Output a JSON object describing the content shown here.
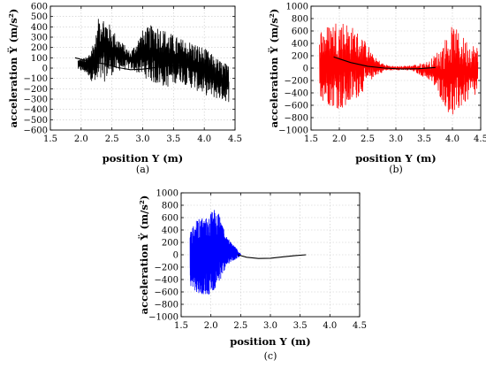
{
  "chart_data": [
    {
      "panel": "a",
      "type": "line",
      "caption": "(a)",
      "xlabel": "position Y (m)",
      "ylabel": "acceleration Ÿ (m/s²)",
      "xlim": [
        1.5,
        4.5
      ],
      "ylim": [
        -600,
        600
      ],
      "xticks": [
        "1.5",
        "2.0",
        "2.5",
        "3.0",
        "3.5",
        "4.0",
        "4.5"
      ],
      "yticks": [
        "600",
        "500",
        "400",
        "300",
        "200",
        "100",
        "0",
        "−100",
        "−200",
        "−300",
        "−400",
        "−500",
        "−600"
      ],
      "grid": true,
      "color": "#000000",
      "series": [
        {
          "style": "noisy",
          "x_range": [
            1.95,
            4.4
          ],
          "envelope_upper": [
            [
              1.95,
              90
            ],
            [
              2.1,
              110
            ],
            [
              2.25,
              350
            ],
            [
              2.3,
              570
            ],
            [
              2.45,
              440
            ],
            [
              2.6,
              300
            ],
            [
              2.8,
              160
            ],
            [
              3.0,
              370
            ],
            [
              3.2,
              440
            ],
            [
              3.4,
              360
            ],
            [
              3.6,
              290
            ],
            [
              3.8,
              260
            ],
            [
              4.0,
              200
            ],
            [
              4.2,
              100
            ],
            [
              4.4,
              30
            ]
          ],
          "envelope_lower": [
            [
              1.95,
              -20
            ],
            [
              2.1,
              -60
            ],
            [
              2.25,
              -200
            ],
            [
              2.3,
              -180
            ],
            [
              2.45,
              -90
            ],
            [
              2.6,
              -30
            ],
            [
              2.8,
              -10
            ],
            [
              3.0,
              -80
            ],
            [
              3.2,
              -160
            ],
            [
              3.4,
              -190
            ],
            [
              3.6,
              -130
            ],
            [
              3.8,
              -200
            ],
            [
              4.0,
              -260
            ],
            [
              4.2,
              -300
            ],
            [
              4.4,
              -330
            ]
          ]
        },
        {
          "style": "smooth",
          "points": [
            [
              1.9,
              100
            ],
            [
              2.2,
              55
            ],
            [
              2.4,
              40
            ],
            [
              2.6,
              5
            ],
            [
              2.8,
              -15
            ],
            [
              3.0,
              -10
            ],
            [
              3.2,
              5
            ],
            [
              3.4,
              20
            ],
            [
              3.6,
              25
            ],
            [
              3.8,
              25
            ],
            [
              4.0,
              20
            ]
          ]
        }
      ]
    },
    {
      "panel": "b",
      "type": "line",
      "caption": "(b)",
      "xlabel": "position Y (m)",
      "ylabel": "acceleration Ÿ (m/s²)",
      "xlim": [
        1.5,
        4.5
      ],
      "ylim": [
        -1000,
        1000
      ],
      "xticks": [
        "1.5",
        "2.0",
        "2.5",
        "3.0",
        "3.5",
        "4.0",
        "4.5"
      ],
      "yticks": [
        "1000",
        "800",
        "600",
        "400",
        "200",
        "0",
        "−200",
        "−400",
        "−600",
        "−800",
        "−1000"
      ],
      "grid": true,
      "color": "#ff0000",
      "series": [
        {
          "style": "noisy",
          "x_range": [
            1.65,
            4.45
          ],
          "envelope_upper": [
            [
              1.65,
              650
            ],
            [
              1.8,
              700
            ],
            [
              1.95,
              800
            ],
            [
              2.1,
              780
            ],
            [
              2.3,
              620
            ],
            [
              2.5,
              400
            ],
            [
              2.6,
              200
            ],
            [
              2.8,
              60
            ],
            [
              3.0,
              30
            ],
            [
              3.3,
              50
            ],
            [
              3.6,
              120
            ],
            [
              3.8,
              350
            ],
            [
              4.0,
              700
            ],
            [
              4.2,
              500
            ],
            [
              4.45,
              350
            ]
          ],
          "envelope_lower": [
            [
              1.65,
              -500
            ],
            [
              1.8,
              -600
            ],
            [
              1.95,
              -650
            ],
            [
              2.1,
              -700
            ],
            [
              2.3,
              -500
            ],
            [
              2.5,
              -300
            ],
            [
              2.6,
              -150
            ],
            [
              2.8,
              -50
            ],
            [
              3.0,
              -30
            ],
            [
              3.3,
              -50
            ],
            [
              3.6,
              -200
            ],
            [
              3.8,
              -500
            ],
            [
              4.0,
              -850
            ],
            [
              4.2,
              -600
            ],
            [
              4.45,
              -450
            ]
          ]
        },
        {
          "style": "smooth",
          "points": [
            [
              1.9,
              180
            ],
            [
              2.2,
              90
            ],
            [
              2.5,
              30
            ],
            [
              2.8,
              0
            ],
            [
              3.1,
              -15
            ],
            [
              3.4,
              -10
            ],
            [
              3.7,
              10
            ]
          ]
        }
      ]
    },
    {
      "panel": "c",
      "type": "line",
      "caption": "(c)",
      "xlabel": "position Y (m)",
      "ylabel": "acceleration Ÿ (m/s²)",
      "xlim": [
        1.5,
        4.5
      ],
      "ylim": [
        -1000,
        1000
      ],
      "xticks": [
        "1.5",
        "2.0",
        "2.5",
        "3.0",
        "3.5",
        "4.0",
        "4.5"
      ],
      "yticks": [
        "1000",
        "800",
        "600",
        "400",
        "200",
        "0",
        "−200",
        "−400",
        "−600",
        "−800",
        "−1000"
      ],
      "grid": true,
      "color": "#0000ff",
      "series": [
        {
          "style": "noisy",
          "x_range": [
            1.65,
            2.5
          ],
          "envelope_upper": [
            [
              1.65,
              350
            ],
            [
              1.75,
              550
            ],
            [
              1.85,
              620
            ],
            [
              1.95,
              600
            ],
            [
              2.05,
              760
            ],
            [
              2.15,
              650
            ],
            [
              2.25,
              300
            ],
            [
              2.35,
              200
            ],
            [
              2.45,
              80
            ],
            [
              2.5,
              20
            ]
          ],
          "envelope_lower": [
            [
              1.65,
              -500
            ],
            [
              1.75,
              -600
            ],
            [
              1.85,
              -640
            ],
            [
              1.95,
              -650
            ],
            [
              2.05,
              -580
            ],
            [
              2.15,
              -450
            ],
            [
              2.25,
              -200
            ],
            [
              2.35,
              -120
            ],
            [
              2.45,
              -50
            ],
            [
              2.5,
              -20
            ]
          ]
        },
        {
          "style": "smooth",
          "points": [
            [
              2.45,
              0
            ],
            [
              2.6,
              -40
            ],
            [
              2.8,
              -60
            ],
            [
              3.0,
              -55
            ],
            [
              3.2,
              -35
            ],
            [
              3.4,
              -15
            ],
            [
              3.6,
              0
            ]
          ]
        }
      ]
    }
  ]
}
